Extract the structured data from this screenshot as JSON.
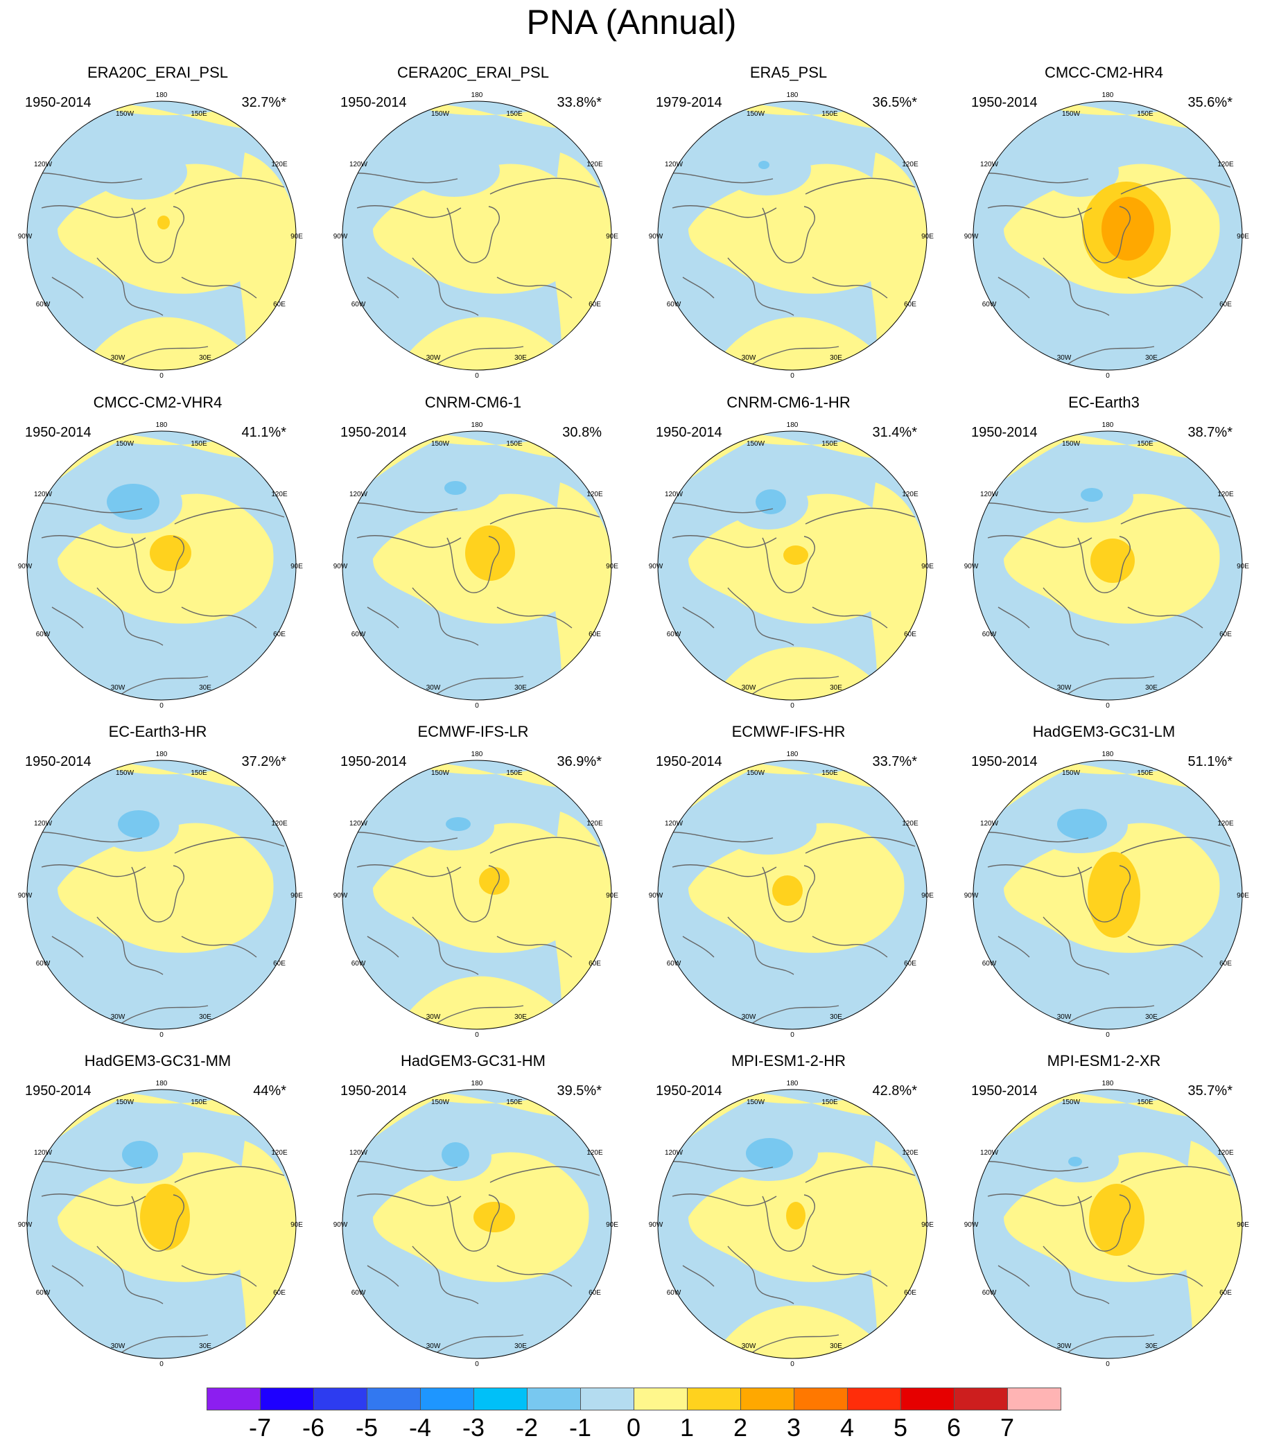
{
  "title": "PNA (Annual)",
  "colors": {
    "land_outline": "#666666",
    "circle_border": "#000000",
    "level_-1": "#b4dcf0",
    "level_-2": "#78c8f0",
    "level_-3": "#00c0f8",
    "level_1": "#fff78c",
    "level_2": "#ffd21e",
    "level_3": "#ffa800"
  },
  "longitude_labels": [
    "180",
    "150W",
    "150E",
    "120W",
    "120E",
    "90W",
    "90E",
    "60W",
    "60E",
    "30W",
    "30E",
    "0"
  ],
  "panels": [
    {
      "name": "ERA20C_ERAI_PSL",
      "years": "1950-2014",
      "pct": "32.7%*"
    },
    {
      "name": "CERA20C_ERAI_PSL",
      "years": "1950-2014",
      "pct": "33.8%*"
    },
    {
      "name": "ERA5_PSL",
      "years": "1979-2014",
      "pct": "36.5%*"
    },
    {
      "name": "CMCC-CM2-HR4",
      "years": "1950-2014",
      "pct": "35.6%*"
    },
    {
      "name": "CMCC-CM2-VHR4",
      "years": "1950-2014",
      "pct": "41.1%*"
    },
    {
      "name": "CNRM-CM6-1",
      "years": "1950-2014",
      "pct": "30.8%"
    },
    {
      "name": "CNRM-CM6-1-HR",
      "years": "1950-2014",
      "pct": "31.4%*"
    },
    {
      "name": "EC-Earth3",
      "years": "1950-2014",
      "pct": "38.7%*"
    },
    {
      "name": "EC-Earth3-HR",
      "years": "1950-2014",
      "pct": "37.2%*"
    },
    {
      "name": "ECMWF-IFS-LR",
      "years": "1950-2014",
      "pct": "36.9%*"
    },
    {
      "name": "ECMWF-IFS-HR",
      "years": "1950-2014",
      "pct": "33.7%*"
    },
    {
      "name": "HadGEM3-GC31-LM",
      "years": "1950-2014",
      "pct": "51.1%*"
    },
    {
      "name": "HadGEM3-GC31-MM",
      "years": "1950-2014",
      "pct": "44%*"
    },
    {
      "name": "HadGEM3-GC31-HM",
      "years": "1950-2014",
      "pct": "39.5%*"
    },
    {
      "name": "MPI-ESM1-2-HR",
      "years": "1950-2014",
      "pct": "42.8%*"
    },
    {
      "name": "MPI-ESM1-2-XR",
      "years": "1950-2014",
      "pct": "35.7%*"
    }
  ],
  "colorbar": {
    "colors": [
      "#8c1ef0",
      "#1e00ff",
      "#2d3cf0",
      "#3278f0",
      "#1e96ff",
      "#00c0f8",
      "#78c8f0",
      "#b4dcf0",
      "#fff78c",
      "#ffd21e",
      "#ffa800",
      "#ff7800",
      "#ff2d0a",
      "#e60000",
      "#cd1e1e",
      "#ffb4b4"
    ],
    "labels": [
      "-7",
      "-6",
      "-5",
      "-4",
      "-3",
      "-2",
      "-1",
      "0",
      "1",
      "2",
      "3",
      "4",
      "5",
      "6",
      "7"
    ]
  }
}
